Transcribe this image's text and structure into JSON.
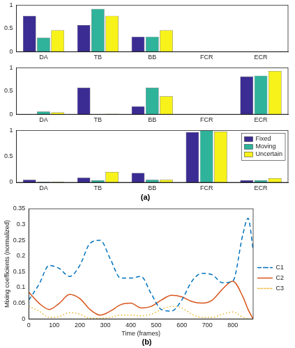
{
  "chart_data": [
    {
      "type": "bar",
      "categories": [
        "DA",
        "TB",
        "BB",
        "FCR",
        "ECR"
      ],
      "series": [
        {
          "name": "Fixed",
          "color": "#3b2c93",
          "values": [
            0.77,
            0.57,
            0.32,
            0,
            0
          ]
        },
        {
          "name": "Moving",
          "color": "#2fb39b",
          "values": [
            0.3,
            0.92,
            0.32,
            0,
            0
          ]
        },
        {
          "name": "Uncertain",
          "color": "#f7f21a",
          "values": [
            0.46,
            0.77,
            0.46,
            0,
            0
          ]
        }
      ],
      "ylim": [
        0,
        1
      ],
      "yticks": [
        0,
        0.5,
        1
      ],
      "grid": false
    },
    {
      "type": "bar",
      "categories": [
        "DA",
        "TB",
        "BB",
        "FCR",
        "ECR"
      ],
      "series": [
        {
          "name": "Fixed",
          "color": "#3b2c93",
          "values": [
            0,
            0.57,
            0.17,
            0,
            0.81
          ]
        },
        {
          "name": "Moving",
          "color": "#2fb39b",
          "values": [
            0.06,
            0,
            0.57,
            0,
            0.83
          ]
        },
        {
          "name": "Uncertain",
          "color": "#f7f21a",
          "values": [
            0.04,
            0.01,
            0.39,
            0,
            0.93
          ]
        }
      ],
      "ylim": [
        0,
        1
      ],
      "yticks": [
        0,
        0.5,
        1
      ],
      "grid": false
    },
    {
      "type": "bar",
      "subtitle": "(a)",
      "categories": [
        "DA",
        "TB",
        "BB",
        "FCR",
        "ECR"
      ],
      "series": [
        {
          "name": "Fixed",
          "color": "#3b2c93",
          "values": [
            0.05,
            0.09,
            0.18,
            0.97,
            0.04
          ]
        },
        {
          "name": "Moving",
          "color": "#2fb39b",
          "values": [
            0.01,
            0.04,
            0.05,
            1.0,
            0.04
          ]
        },
        {
          "name": "Uncertain",
          "color": "#f7f21a",
          "values": [
            0.01,
            0.2,
            0.05,
            0.98,
            0.08
          ]
        }
      ],
      "ylim": [
        0,
        1
      ],
      "yticks": [
        0,
        0.5,
        1
      ],
      "grid": false,
      "legend": "upper right"
    },
    {
      "type": "line",
      "subtitle": "(b)",
      "x_label": "Time (frames)",
      "y_label": "Mixing coefficients (normalized)",
      "x": [
        0,
        40,
        80,
        120,
        160,
        200,
        240,
        280,
        320,
        360,
        400,
        440,
        480,
        520,
        560,
        600,
        640,
        680,
        720,
        760,
        800,
        840,
        860,
        880
      ],
      "series": [
        {
          "name": "C1",
          "color": "#0072bd",
          "line_style": "dashed",
          "values": [
            0.06,
            0.11,
            0.17,
            0.16,
            0.135,
            0.17,
            0.24,
            0.25,
            0.19,
            0.13,
            0.13,
            0.135,
            0.08,
            0.03,
            0.025,
            0.06,
            0.12,
            0.145,
            0.14,
            0.115,
            0.12,
            0.27,
            0.32,
            0.22
          ]
        },
        {
          "name": "C2",
          "color": "#d95319",
          "line_style": "solid",
          "values": [
            0.085,
            0.05,
            0.03,
            0.05,
            0.078,
            0.065,
            0.03,
            0.012,
            0.025,
            0.045,
            0.05,
            0.035,
            0.04,
            0.06,
            0.075,
            0.07,
            0.055,
            0.05,
            0.06,
            0.095,
            0.12,
            0.07,
            0.03,
            0.0
          ]
        },
        {
          "name": "C3",
          "color": "#edb120",
          "line_style": "dotted",
          "values": [
            0.04,
            0.025,
            0.005,
            0.008,
            0.02,
            0.015,
            0.002,
            0.002,
            0.005,
            0.012,
            0.012,
            0.01,
            0.015,
            0.03,
            0.04,
            0.035,
            0.015,
            0.005,
            0.005,
            0.015,
            0.022,
            0.005,
            0.0,
            0.0
          ]
        }
      ],
      "xlim": [
        0,
        880
      ],
      "xticks": [
        0,
        100,
        200,
        300,
        400,
        500,
        600,
        700,
        800
      ],
      "ylim": [
        0,
        0.35
      ],
      "yticks": [
        0,
        0.05,
        0.1,
        0.15,
        0.2,
        0.25,
        0.3,
        0.35
      ],
      "grid": false,
      "legend": "right"
    }
  ]
}
